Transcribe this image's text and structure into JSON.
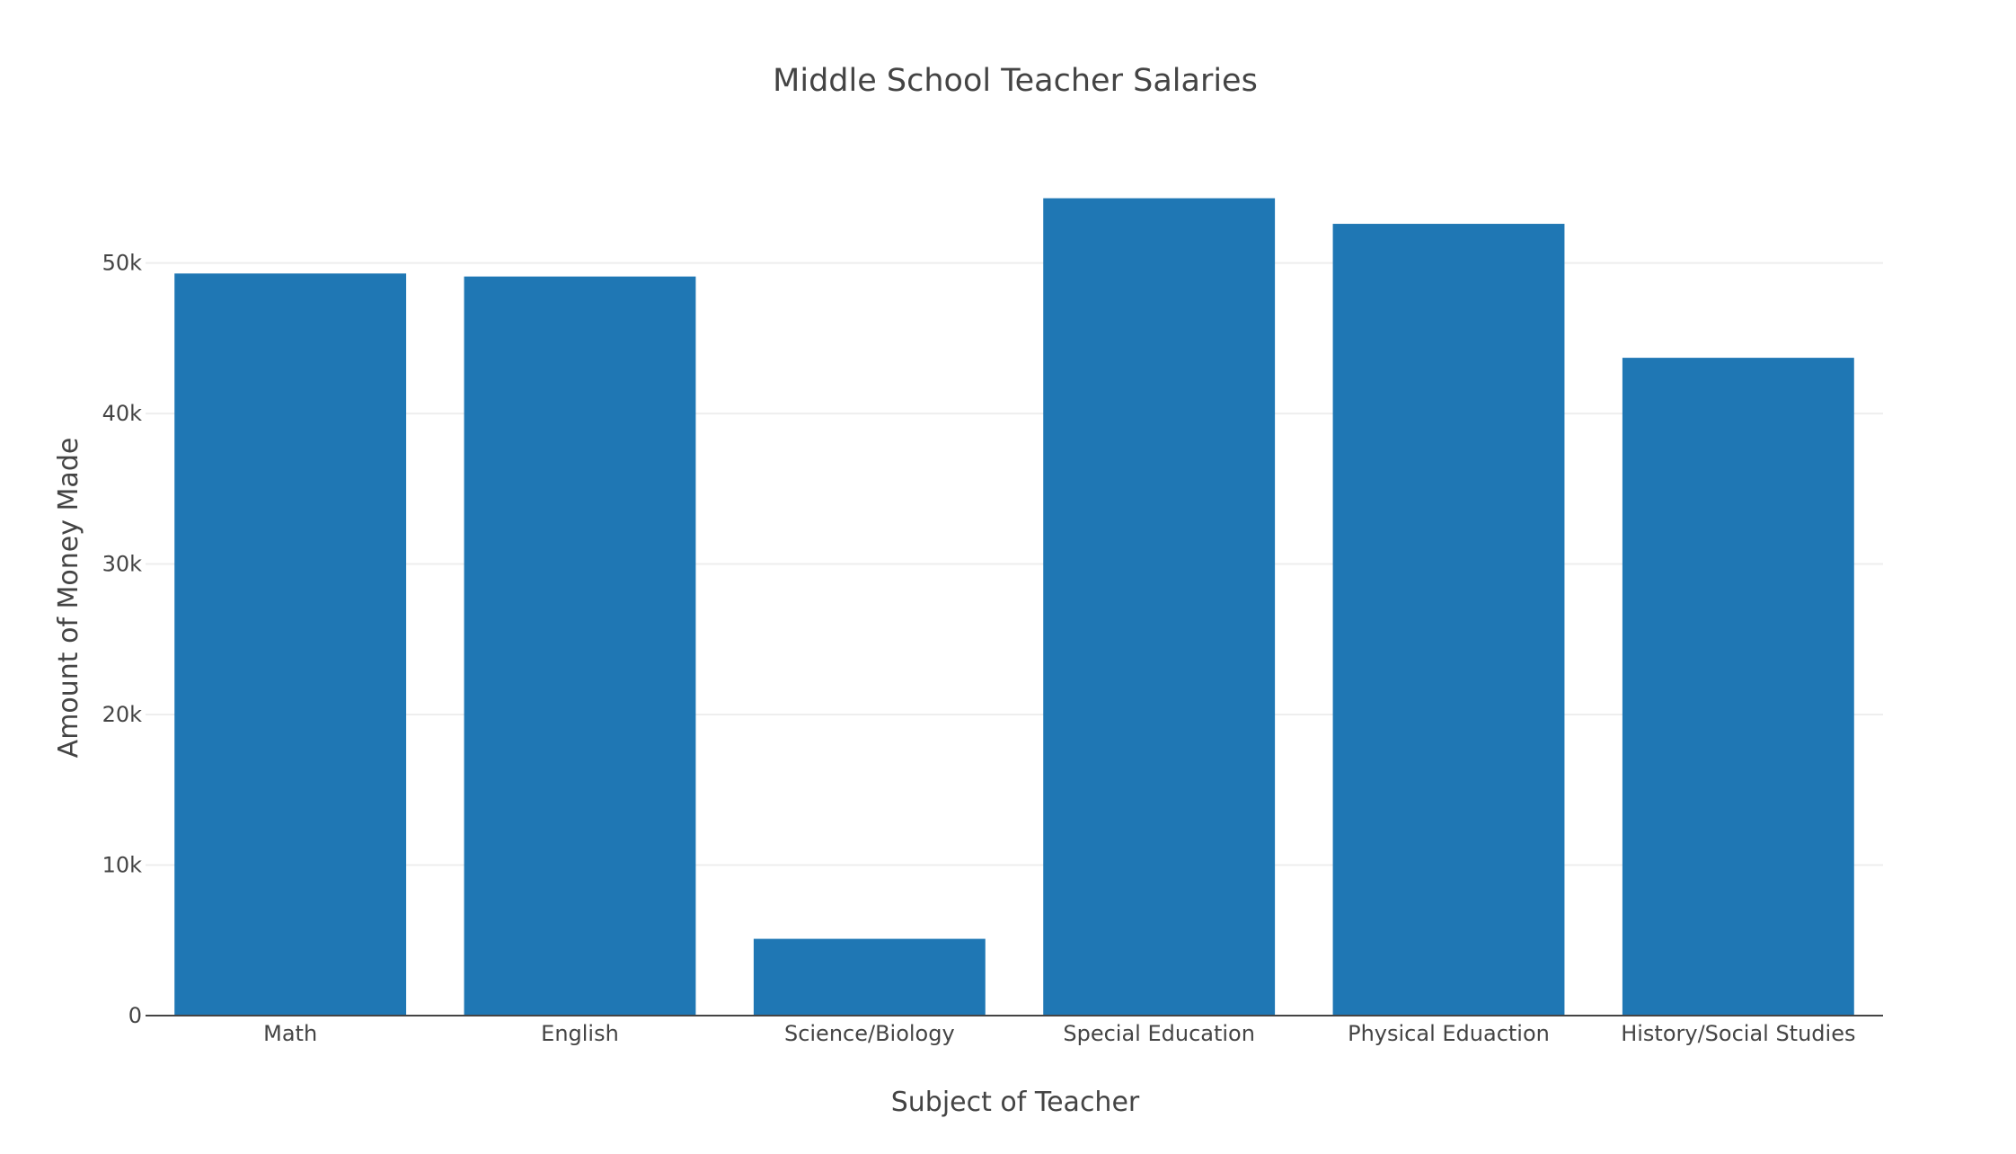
{
  "chart_data": {
    "type": "bar",
    "title": "Middle School Teacher Salaries",
    "xlabel": "Subject of Teacher",
    "ylabel": "Amount of Money Made",
    "categories": [
      "Math",
      "English",
      "Science/Biology",
      "Special Education",
      "Physical Eduaction",
      "History/Social Studies"
    ],
    "values": [
      49300,
      49100,
      5100,
      54300,
      52600,
      43700
    ],
    "ylim": [
      0,
      57200
    ],
    "yticks": [
      0,
      10000,
      20000,
      30000,
      40000,
      50000
    ],
    "ytick_labels": [
      "0",
      "10k",
      "20k",
      "30k",
      "40k",
      "50k"
    ],
    "grid": true,
    "legend": "none",
    "bar_color": "#1f77b4"
  }
}
